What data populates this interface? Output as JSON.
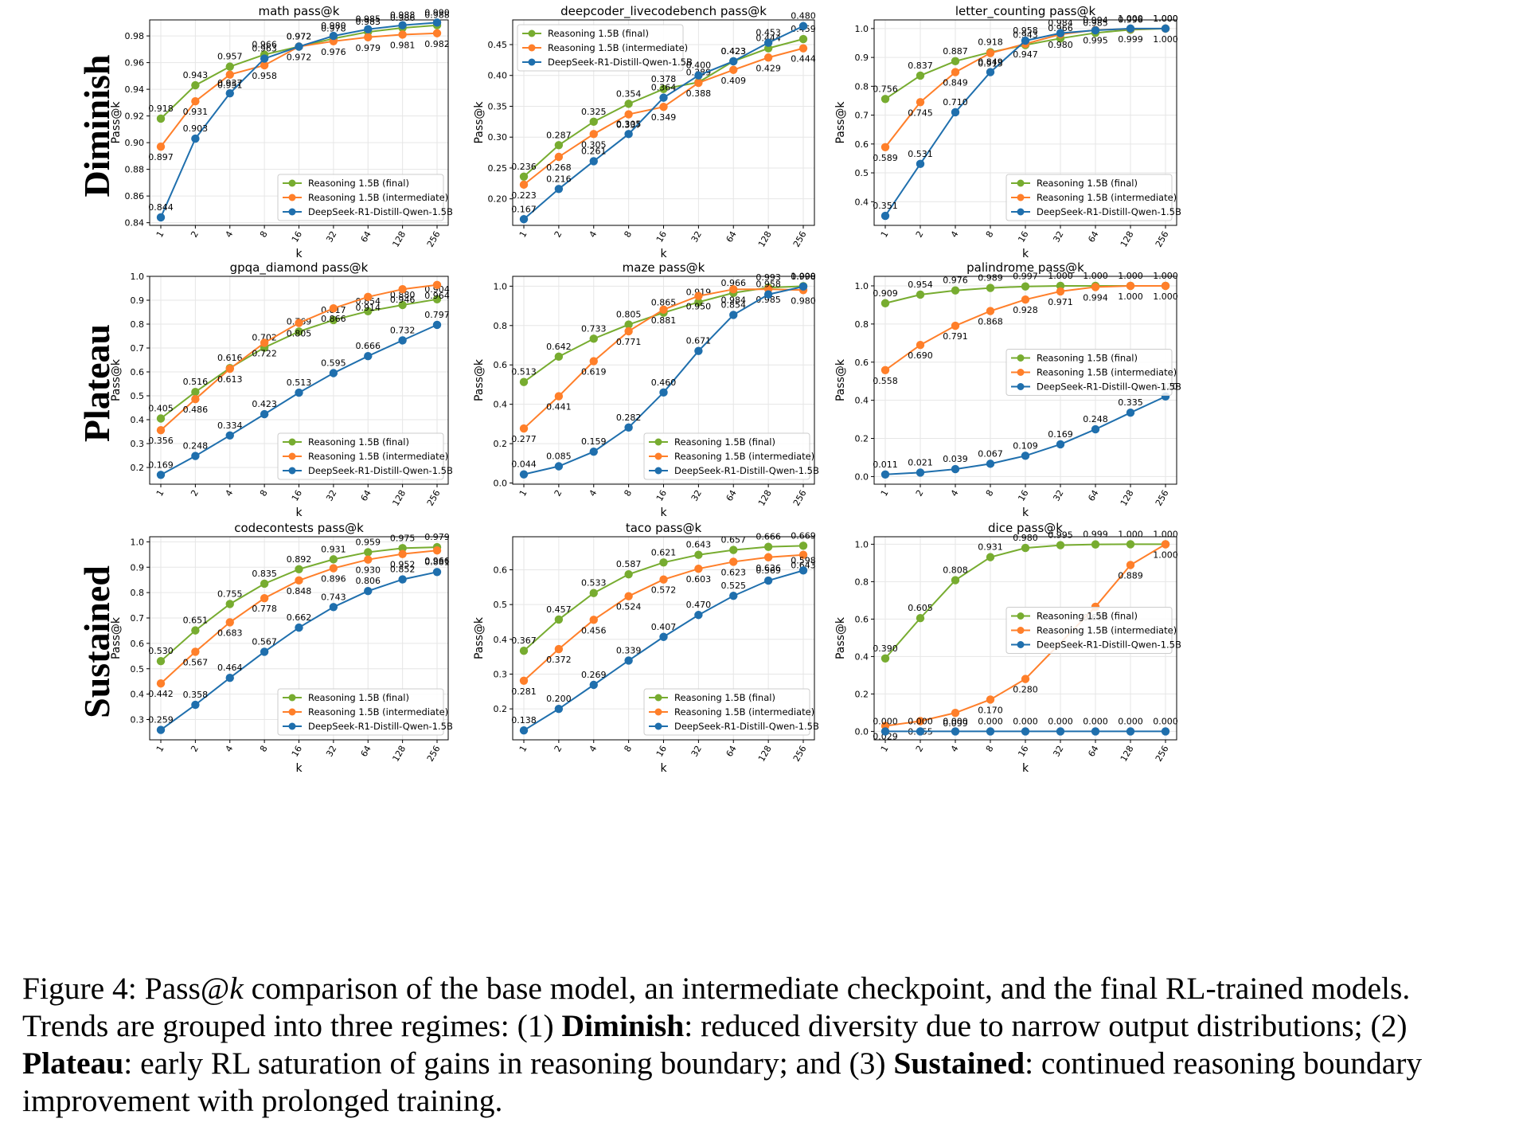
{
  "row_labels": [
    "Diminish",
    "Plateau",
    "Sustained"
  ],
  "colors": {
    "final": "#77ac30",
    "intermediate": "#ff7f2a",
    "base": "#1f6fad"
  },
  "caption": {
    "prefix": "Figure 4: Pass@",
    "k": "k",
    "s1": " comparison of the base model, an intermediate checkpoint, and the final RL-trained models. Trends are grouped into three regimes: (1) ",
    "b1": "Diminish",
    "s2": ": reduced diversity due to narrow output distributions; (2) ",
    "b2": "Plateau",
    "s3": ": early RL saturation of gains in reasoning boundary; and (3) ",
    "b3": "Sustained",
    "s4": ": continued reasoning boundary improvement with prolonged training."
  },
  "chart_data": [
    {
      "type": "line",
      "title": "math pass@k",
      "xlabel": "k",
      "ylabel": "Pass@k",
      "categories": [
        "1",
        "2",
        "4",
        "8",
        "16",
        "32",
        "64",
        "128",
        "256"
      ],
      "ylim": [
        0.838,
        0.992
      ],
      "yticks": [
        0.84,
        0.86,
        0.88,
        0.9,
        0.92,
        0.94,
        0.96,
        0.98
      ],
      "legend": "lower-right",
      "grid": true,
      "series": [
        {
          "name": "Reasoning 1.5B (final)",
          "key": "final",
          "values": [
            0.918,
            0.943,
            0.957,
            0.966,
            0.972,
            0.978,
            0.983,
            0.986,
            0.988
          ]
        },
        {
          "name": "Reasoning 1.5B (intermediate)",
          "key": "intermediate",
          "values": [
            0.897,
            0.931,
            0.951,
            0.958,
            0.972,
            0.976,
            0.979,
            0.981,
            0.982
          ]
        },
        {
          "name": "DeepSeek-R1-Distill-Qwen-1.5B",
          "key": "base",
          "values": [
            0.844,
            0.903,
            0.937,
            0.963,
            0.972,
            0.98,
            0.985,
            0.988,
            0.99
          ]
        }
      ]
    },
    {
      "type": "line",
      "title": "deepcoder_livecodebench pass@k",
      "xlabel": "k",
      "ylabel": "Pass@k",
      "categories": [
        "1",
        "2",
        "4",
        "8",
        "16",
        "32",
        "64",
        "128",
        "256"
      ],
      "ylim": [
        0.157,
        0.49
      ],
      "yticks": [
        0.2,
        0.25,
        0.3,
        0.35,
        0.4,
        0.45
      ],
      "legend": "upper-left",
      "grid": true,
      "series": [
        {
          "name": "Reasoning 1.5B (final)",
          "key": "final",
          "values": [
            0.236,
            0.287,
            0.325,
            0.354,
            0.378,
            0.389,
            0.423,
            0.444,
            0.459
          ]
        },
        {
          "name": "Reasoning 1.5B (intermediate)",
          "key": "intermediate",
          "values": [
            0.223,
            0.268,
            0.305,
            0.337,
            0.349,
            0.388,
            0.409,
            0.429,
            0.444
          ]
        },
        {
          "name": "DeepSeek-R1-Distill-Qwen-1.5B",
          "key": "base",
          "values": [
            0.167,
            0.216,
            0.261,
            0.305,
            0.364,
            0.4,
            0.423,
            0.453,
            0.48
          ]
        }
      ]
    },
    {
      "type": "line",
      "title": "letter_counting pass@k",
      "xlabel": "k",
      "ylabel": "Pass@k",
      "categories": [
        "1",
        "2",
        "4",
        "8",
        "16",
        "32",
        "64",
        "128",
        "256"
      ],
      "ylim": [
        0.318,
        1.03
      ],
      "yticks": [
        0.4,
        0.5,
        0.6,
        0.7,
        0.8,
        0.9,
        1.0
      ],
      "legend": "lower-right",
      "grid": true,
      "series": [
        {
          "name": "Reasoning 1.5B (final)",
          "key": "final",
          "values": [
            0.756,
            0.837,
            0.887,
            0.918,
            0.943,
            0.966,
            0.985,
            0.996,
            1.0
          ]
        },
        {
          "name": "Reasoning 1.5B (intermediate)",
          "key": "intermediate",
          "values": [
            0.589,
            0.745,
            0.849,
            0.915,
            0.947,
            0.98,
            0.995,
            0.999,
            1.0
          ]
        },
        {
          "name": "DeepSeek-R1-Distill-Qwen-1.5B",
          "key": "base",
          "values": [
            0.351,
            0.531,
            0.71,
            0.849,
            0.958,
            0.984,
            0.994,
            1.0,
            1.0
          ]
        }
      ]
    },
    {
      "type": "line",
      "title": "gpqa_diamond pass@k",
      "xlabel": "k",
      "ylabel": "Pass@k",
      "categories": [
        "1",
        "2",
        "4",
        "8",
        "16",
        "32",
        "64",
        "128",
        "256"
      ],
      "ylim": [
        0.13,
        1.0
      ],
      "yticks": [
        0.2,
        0.3,
        0.4,
        0.5,
        0.6,
        0.7,
        0.8,
        0.9,
        1.0
      ],
      "legend": "lower-right",
      "grid": true,
      "series": [
        {
          "name": "Reasoning 1.5B (final)",
          "key": "final",
          "values": [
            0.405,
            0.516,
            0.616,
            0.702,
            0.769,
            0.817,
            0.854,
            0.88,
            0.904
          ]
        },
        {
          "name": "Reasoning 1.5B (intermediate)",
          "key": "intermediate",
          "values": [
            0.356,
            0.486,
            0.613,
            0.722,
            0.805,
            0.866,
            0.914,
            0.946,
            0.964
          ]
        },
        {
          "name": "DeepSeek-R1-Distill-Qwen-1.5B",
          "key": "base",
          "values": [
            0.169,
            0.248,
            0.334,
            0.423,
            0.513,
            0.595,
            0.666,
            0.732,
            0.797
          ]
        }
      ]
    },
    {
      "type": "line",
      "title": "maze pass@k",
      "xlabel": "k",
      "ylabel": "Pass@k",
      "categories": [
        "1",
        "2",
        "4",
        "8",
        "16",
        "32",
        "64",
        "128",
        "256"
      ],
      "ylim": [
        -0.006,
        1.05
      ],
      "yticks": [
        0.0,
        0.2,
        0.4,
        0.6,
        0.8,
        1.0
      ],
      "legend": "lower-right",
      "grid": true,
      "series": [
        {
          "name": "Reasoning 1.5B (final)",
          "key": "final",
          "values": [
            0.513,
            0.642,
            0.733,
            0.805,
            0.865,
            0.919,
            0.966,
            0.993,
            1.0
          ]
        },
        {
          "name": "Reasoning 1.5B (intermediate)",
          "key": "intermediate",
          "values": [
            0.277,
            0.441,
            0.619,
            0.771,
            0.881,
            0.95,
            0.984,
            0.985,
            0.98
          ]
        },
        {
          "name": "DeepSeek-R1-Distill-Qwen-1.5B",
          "key": "base",
          "values": [
            0.044,
            0.085,
            0.159,
            0.282,
            0.46,
            0.671,
            0.854,
            0.958,
            0.998
          ]
        }
      ]
    },
    {
      "type": "line",
      "title": "palindrome pass@k",
      "xlabel": "k",
      "ylabel": "Pass@k",
      "categories": [
        "1",
        "2",
        "4",
        "8",
        "16",
        "32",
        "64",
        "128",
        "256"
      ],
      "ylim": [
        -0.04,
        1.05
      ],
      "yticks": [
        0.0,
        0.2,
        0.4,
        0.6,
        0.8,
        1.0
      ],
      "legend": "center-right",
      "grid": true,
      "series": [
        {
          "name": "Reasoning 1.5B (final)",
          "key": "final",
          "values": [
            0.909,
            0.954,
            0.976,
            0.989,
            0.997,
            1.0,
            1.0,
            1.0,
            1.0
          ]
        },
        {
          "name": "Reasoning 1.5B (intermediate)",
          "key": "intermediate",
          "values": [
            0.558,
            0.69,
            0.791,
            0.868,
            0.928,
            0.971,
            0.994,
            1.0,
            1.0
          ]
        },
        {
          "name": "DeepSeek-R1-Distill-Qwen-1.5B",
          "key": "base",
          "values": [
            0.011,
            0.021,
            0.039,
            0.067,
            0.109,
            0.169,
            0.248,
            0.335,
            0.42
          ]
        }
      ]
    },
    {
      "type": "line",
      "title": "codecontests pass@k",
      "xlabel": "k",
      "ylabel": "Pass@k",
      "categories": [
        "1",
        "2",
        "4",
        "8",
        "16",
        "32",
        "64",
        "128",
        "256"
      ],
      "ylim": [
        0.22,
        1.02
      ],
      "yticks": [
        0.3,
        0.4,
        0.5,
        0.6,
        0.7,
        0.8,
        0.9,
        1.0
      ],
      "legend": "lower-right",
      "grid": true,
      "series": [
        {
          "name": "Reasoning 1.5B (final)",
          "key": "final",
          "values": [
            0.53,
            0.651,
            0.755,
            0.835,
            0.892,
            0.931,
            0.959,
            0.975,
            0.979
          ]
        },
        {
          "name": "Reasoning 1.5B (intermediate)",
          "key": "intermediate",
          "values": [
            0.442,
            0.567,
            0.683,
            0.778,
            0.848,
            0.896,
            0.93,
            0.952,
            0.966
          ]
        },
        {
          "name": "DeepSeek-R1-Distill-Qwen-1.5B",
          "key": "base",
          "values": [
            0.259,
            0.358,
            0.464,
            0.567,
            0.662,
            0.743,
            0.806,
            0.852,
            0.881
          ]
        }
      ]
    },
    {
      "type": "line",
      "title": "taco pass@k",
      "xlabel": "k",
      "ylabel": "Pass@k",
      "categories": [
        "1",
        "2",
        "4",
        "8",
        "16",
        "32",
        "64",
        "128",
        "256"
      ],
      "ylim": [
        0.111,
        0.695
      ],
      "yticks": [
        0.2,
        0.3,
        0.4,
        0.5,
        0.6
      ],
      "legend": "lower-right",
      "grid": true,
      "series": [
        {
          "name": "Reasoning 1.5B (final)",
          "key": "final",
          "values": [
            0.367,
            0.457,
            0.533,
            0.587,
            0.621,
            0.643,
            0.657,
            0.666,
            0.669
          ]
        },
        {
          "name": "Reasoning 1.5B (intermediate)",
          "key": "intermediate",
          "values": [
            0.281,
            0.372,
            0.456,
            0.524,
            0.572,
            0.603,
            0.623,
            0.636,
            0.643
          ]
        },
        {
          "name": "DeepSeek-R1-Distill-Qwen-1.5B",
          "key": "base",
          "values": [
            0.138,
            0.2,
            0.269,
            0.339,
            0.407,
            0.47,
            0.525,
            0.569,
            0.598
          ]
        }
      ]
    },
    {
      "type": "line",
      "title": "dice pass@k",
      "xlabel": "k",
      "ylabel": "Pass@k",
      "categories": [
        "1",
        "2",
        "4",
        "8",
        "16",
        "32",
        "64",
        "128",
        "256"
      ],
      "ylim": [
        -0.045,
        1.04
      ],
      "yticks": [
        0.0,
        0.2,
        0.4,
        0.6,
        0.8,
        1.0
      ],
      "legend": "center-right",
      "grid": true,
      "series": [
        {
          "name": "Reasoning 1.5B (final)",
          "key": "final",
          "values": [
            0.39,
            0.605,
            0.808,
            0.931,
            0.98,
            0.995,
            0.999,
            1.0,
            1.0
          ]
        },
        {
          "name": "Reasoning 1.5B (intermediate)",
          "key": "intermediate",
          "values": [
            0.029,
            0.055,
            0.099,
            0.17,
            0.28,
            null,
            0.666,
            0.889,
            1.0
          ]
        },
        {
          "name": "DeepSeek-R1-Distill-Qwen-1.5B",
          "key": "base",
          "values": [
            0.0,
            0.0,
            0.0,
            0.0,
            0.0,
            0.0,
            0.0,
            0.0,
            0.0
          ]
        }
      ]
    }
  ]
}
